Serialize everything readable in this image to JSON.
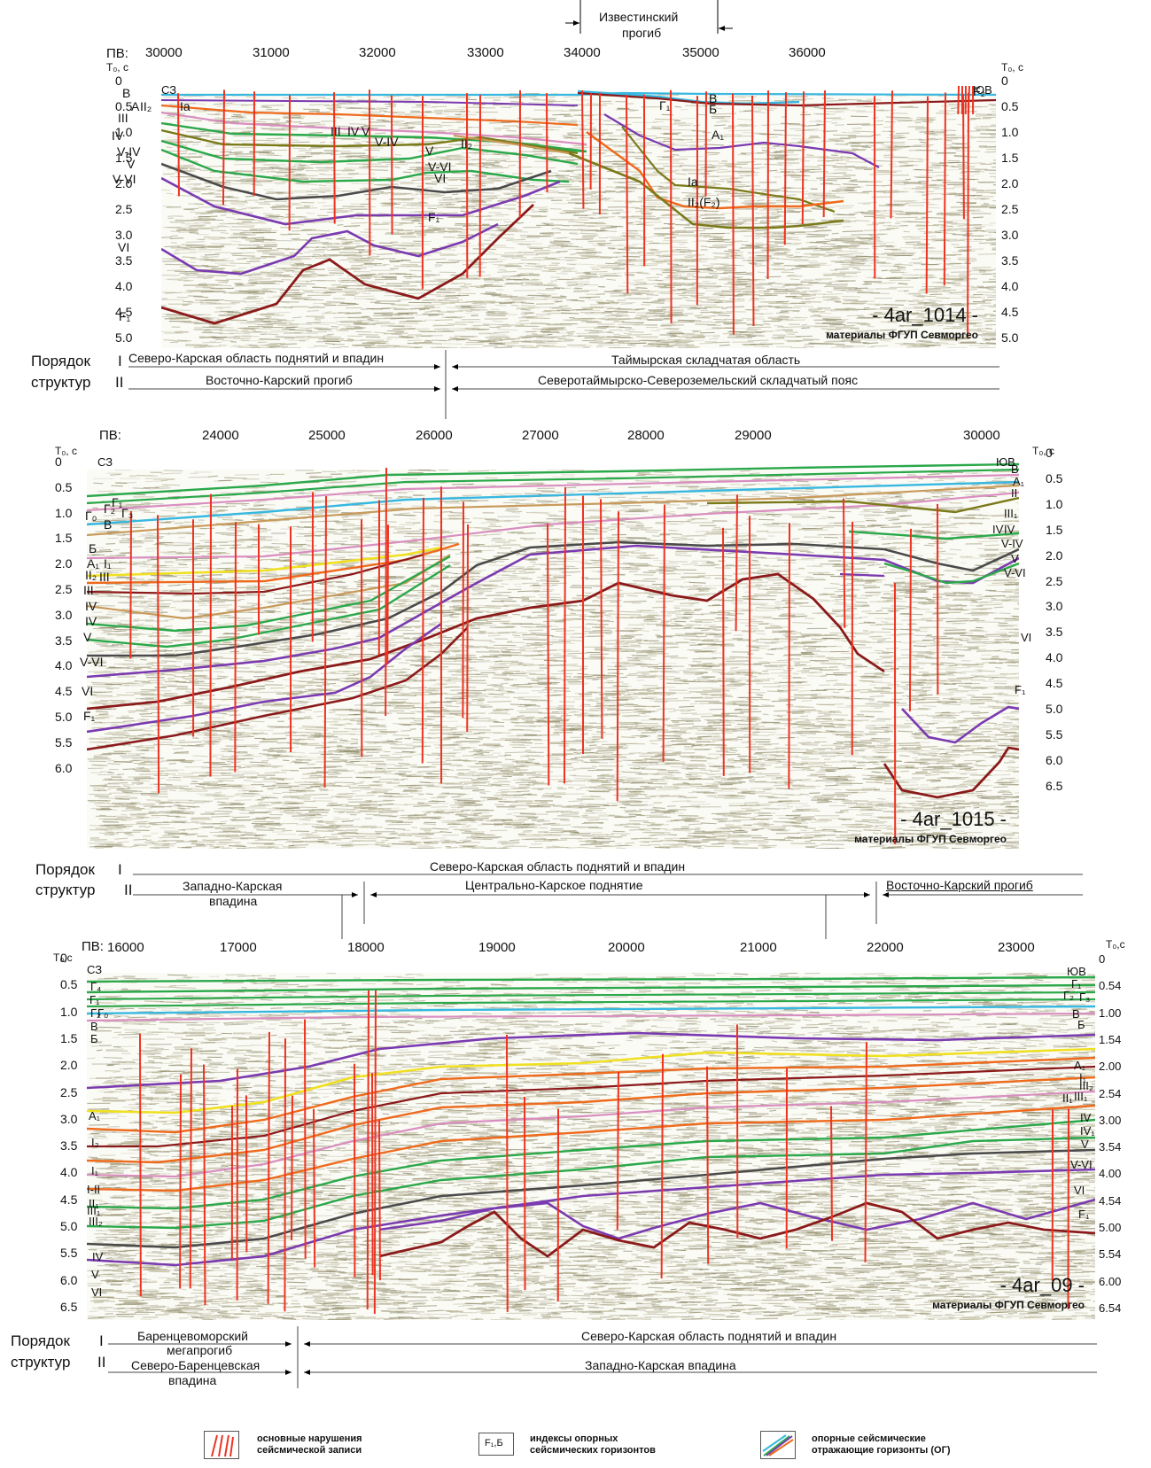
{
  "header": {
    "depression_label_line1": "Известинский",
    "depression_label_line2": "прогиб"
  },
  "axis_labels": {
    "pv": "ПВ:",
    "pv_first": "ПВ:",
    "time_left": "T₀, с",
    "time_right": "T₀, с",
    "time_left_b": "T₀, с",
    "time_right_b": "T₀, с",
    "time_left_c": "T₀,с",
    "time_right_c": "T₀,с",
    "nw": "СЗ",
    "se": "ЮВ"
  },
  "profiles": [
    {
      "id": "- 4ar_1014 -",
      "source": "материалы ФГУП Севморгео",
      "pv_ticks": [
        "30000",
        "31000",
        "32000",
        "33000",
        "34000",
        "35000",
        "36000"
      ],
      "time_ticks": [
        "0",
        "0.5",
        "1.0",
        "1.5",
        "2.0",
        "2.5",
        "3.0",
        "3.5",
        "4.0",
        "4.5",
        "5.0"
      ],
      "time_ticks_right": [
        "0",
        "0.5",
        "1.0",
        "1.5",
        "2.0",
        "2.5",
        "3.0",
        "3.5",
        "4.0",
        "4.5",
        "5.0"
      ],
      "left_horizon_labels": [
        "B",
        "A",
        "II₂",
        "Ia",
        "III",
        "IV",
        "V-IV",
        "V",
        "V-VI",
        "VI",
        "F₁"
      ],
      "inner_labels": [
        "III",
        "IV",
        "V",
        "V-IV",
        "V",
        "V-VI",
        "VI",
        "II₂",
        "F₁",
        "Г₁",
        "B",
        "Б",
        "A₁",
        "Ia",
        "II₂(F₂)",
        "F₂"
      ],
      "structure_rows": {
        "order_label": "Порядок",
        "struct_label": "структур",
        "row1_roman": "I",
        "row2_roman": "II",
        "row1_left": "Северо-Карская область поднятий и впадин",
        "row1_right": "Таймырская складчатая область",
        "row2_left": "Восточно-Карский прогиб",
        "row2_right": "Северотаймырско-Североземельский складчатый пояс"
      }
    },
    {
      "id": "- 4ar_1015 -",
      "source": "материалы ФГУП Севморгео",
      "pv_ticks": [
        "24000",
        "25000",
        "26000",
        "27000",
        "28000",
        "29000",
        "30000"
      ],
      "time_ticks": [
        "0",
        "0.5",
        "1.0",
        "1.5",
        "2.0",
        "2.5",
        "3.0",
        "3.5",
        "4.0",
        "4.5",
        "5.0",
        "5.5",
        "6.0"
      ],
      "time_ticks_right": [
        "0",
        "0.5",
        "1.0",
        "1.5",
        "2.0",
        "2.5",
        "3.0",
        "3.5",
        "4.0",
        "4.5",
        "5.0",
        "5.5",
        "6.0",
        "6.5"
      ],
      "left_horizon_labels": [
        "Г₁",
        "Г₂",
        "Г₃",
        "Г₀",
        "B",
        "Б",
        "A₁",
        "I₁",
        "II₂",
        "III",
        "III",
        "IV",
        "IV",
        "V",
        "V-VI",
        "VI",
        "F₁"
      ],
      "right_horizon_labels": [
        "B",
        "A₁",
        "II",
        "III₁",
        "IV",
        "IV",
        "V-IV",
        "V",
        "V-VI",
        "VI",
        "F₁"
      ],
      "structure_rows": {
        "order_label": "Порядок",
        "struct_label": "структур",
        "row1_roman": "I",
        "row2_roman": "II",
        "row1_center": "Северо-Карская область поднятий и впадин",
        "row2_left_line1": "Западно-Карская",
        "row2_left_line2": "впадина",
        "row2_center": "Центрально-Карское поднятие",
        "row2_right": "Восточно-Карский прогиб"
      }
    },
    {
      "id": "- 4ar_09 -",
      "source": "материалы ФГУП Севморгео",
      "pv_ticks": [
        "16000",
        "17000",
        "18000",
        "19000",
        "20000",
        "21000",
        "22000",
        "23000"
      ],
      "time_ticks": [
        "0",
        "0.5",
        "1.0",
        "1.5",
        "2.0",
        "2.5",
        "3.0",
        "3.5",
        "4.0",
        "4.5",
        "5.0",
        "5.5",
        "6.0",
        "6.5"
      ],
      "time_ticks_right": [
        "0",
        "0.54",
        "1.00",
        "1.54",
        "2.00",
        "2.54",
        "3.00",
        "3.54",
        "4.00",
        "4.54",
        "5.00",
        "5.54",
        "6.00",
        "6.54"
      ],
      "left_horizon_labels": [
        "Г₄",
        "Г₁",
        "Г₂",
        "Г₀",
        "B",
        "Б",
        "A₁",
        "I₂",
        "I₁",
        "I-II",
        "II₁",
        "III₁",
        "III₂",
        "IV",
        "V",
        "VI"
      ],
      "right_horizon_labels": [
        "Г₁",
        "Г₂",
        "Г₃",
        "B",
        "Б",
        "A₁",
        "I₁",
        "III₂",
        "II₁",
        "III₁",
        "IV",
        "IV₁",
        "V",
        "V-VI",
        "VI",
        "F₁"
      ],
      "structure_rows": {
        "order_label": "Порядок",
        "struct_label": "структур",
        "row1_roman": "I",
        "row2_roman": "II",
        "row1_left": "Баренцевоморский",
        "row1_left_line2": "мегапрогиб",
        "row1_right": "Северо-Карская область поднятий и впадин",
        "row2_left_line1": "Северо-Баренцевская",
        "row2_left_line2": "впадина",
        "row2_right": "Западно-Карская впадина"
      }
    }
  ],
  "legend": [
    {
      "icon": "fault-lines-icon",
      "line1": "основные нарушения",
      "line2": "сейсмической записи"
    },
    {
      "icon": "index-box-icon",
      "box_text": "F₁,Б",
      "line1": "индексы опорных",
      "line2": "сейсмических горизонтов"
    },
    {
      "icon": "horizon-lines-icon",
      "line1": "опорные  сейсмические",
      "line2": "отражающие горизонты (ОГ)"
    }
  ],
  "colors": {
    "seismic_fill": "#b9b59a",
    "fault": "#ee3322",
    "cyan": "#37b8e0",
    "green": "#2aa84a",
    "pink": "#d98ec0",
    "purple": "#7a3ab0",
    "orange": "#ee6a1c",
    "yellow": "#f0e020",
    "gray": "#4a4a4a",
    "darkred": "#8b1a1a",
    "olive": "#7b7a1a",
    "tan": "#c89a5a"
  }
}
